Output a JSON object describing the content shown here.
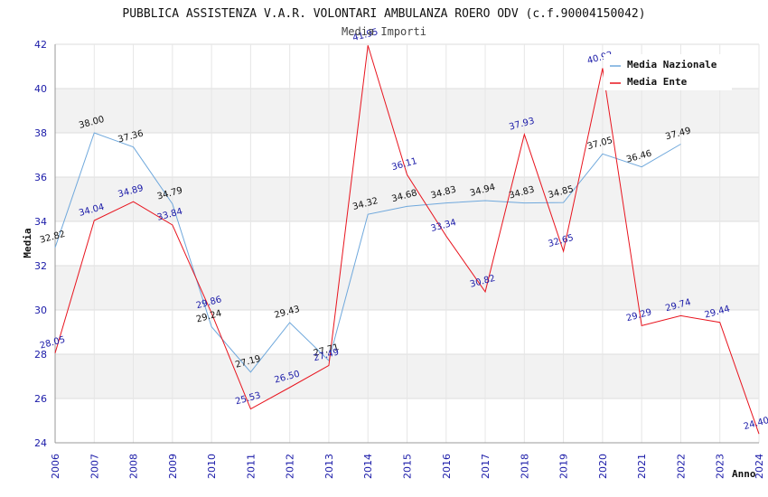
{
  "chart_data": {
    "type": "line",
    "title": "PUBBLICA ASSISTENZA V.A.R. VOLONTARI AMBULANZA ROERO ODV (c.f.90004150042)",
    "subtitle": "Media Importi",
    "xlabel": "Anno",
    "ylabel": "Media",
    "ylim": [
      24,
      42
    ],
    "yticks": [
      "24",
      "26",
      "28",
      "30",
      "32",
      "34",
      "36",
      "38",
      "40",
      "42"
    ],
    "categories": [
      "2006",
      "2007",
      "2008",
      "2009",
      "2010",
      "2011",
      "2012",
      "2013",
      "2014",
      "2015",
      "2016",
      "2017",
      "2018",
      "2019",
      "2020",
      "2021",
      "2022",
      "2023",
      "2024"
    ],
    "series": [
      {
        "name": "Media Nazionale",
        "color": "#6fa8dc",
        "values": [
          32.82,
          38.0,
          37.36,
          34.79,
          29.24,
          27.19,
          29.43,
          27.71,
          34.32,
          34.68,
          34.83,
          34.94,
          34.83,
          34.85,
          37.05,
          36.46,
          37.49,
          null,
          null
        ],
        "labels": [
          "32.82",
          "38.00",
          "37.36",
          "34.79",
          "29.24",
          "27.19",
          "29.43",
          "27.71",
          "34.32",
          "34.68",
          "34.83",
          "34.94",
          "34.83",
          "34.85",
          "37.05",
          "36.46",
          "37.49",
          null,
          null
        ]
      },
      {
        "name": "Media Ente",
        "color": "#e8141e",
        "values": [
          28.05,
          34.04,
          34.89,
          33.84,
          29.86,
          25.53,
          26.5,
          27.49,
          41.95,
          36.11,
          33.34,
          30.82,
          37.93,
          32.65,
          40.92,
          29.29,
          29.74,
          29.44,
          24.4
        ],
        "labels": [
          "28.05",
          "34.04",
          "34.89",
          "33.84",
          "29.86",
          "25.53",
          "26.50",
          "27.49",
          "41.95",
          "36.11",
          "33.34",
          "30.82",
          "37.93",
          "32.65",
          "40.92",
          "29.29",
          "29.74",
          "29.44",
          "24.40"
        ]
      }
    ]
  }
}
